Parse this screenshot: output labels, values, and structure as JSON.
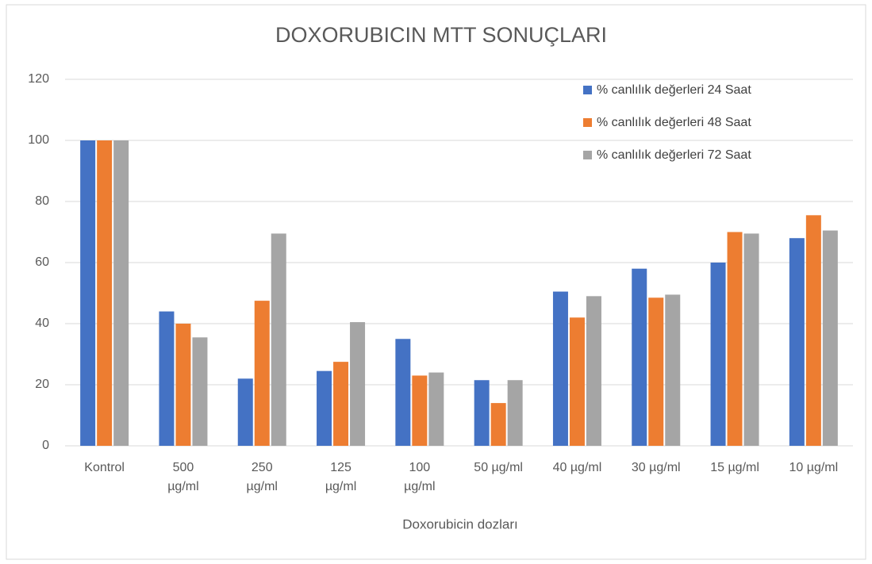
{
  "chart_data": {
    "type": "bar",
    "title": "DOXORUBICIN MTT SONUÇLARI",
    "x_label": "Doxorubicin dozları",
    "categories": [
      "Kontrol",
      "500 µg/ml",
      "250 µg/ml",
      "125 µg/ml",
      "100 µg/ml",
      "50 µg/ml",
      "40 µg/ml",
      "30 µg/ml",
      "15 µg/ml",
      "10 µg/ml"
    ],
    "series": [
      {
        "name": "% canlılık değerleri 24 Saat",
        "color": "#4472c4",
        "values": [
          100,
          44,
          22,
          24.5,
          35,
          21.5,
          50.5,
          58,
          60,
          68
        ]
      },
      {
        "name": "% canlılık değerleri 48 Saat",
        "color": "#ed7d31",
        "values": [
          100,
          40,
          47.5,
          27.5,
          23,
          14,
          42,
          48.5,
          70,
          75.5
        ]
      },
      {
        "name": "% canlılık değerleri 72 Saat",
        "color": "#a5a5a5",
        "values": [
          100,
          35.5,
          69.5,
          40.5,
          24,
          21.5,
          49,
          49.5,
          69.5,
          70.5
        ]
      }
    ],
    "ylim": [
      0,
      120
    ],
    "yticks": [
      0,
      20,
      40,
      60,
      80,
      100,
      120
    ],
    "grid": true,
    "legend": "top-right"
  }
}
